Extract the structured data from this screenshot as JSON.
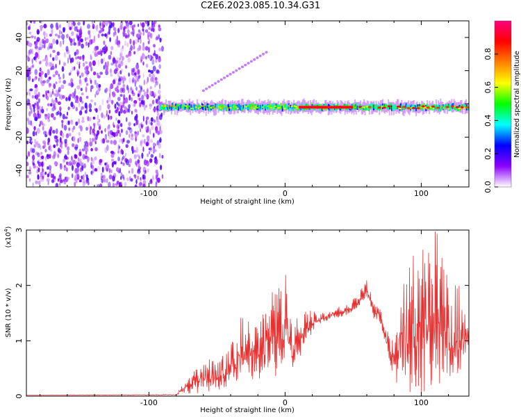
{
  "title": "C2E6.2023.085.10.34.G31",
  "chart_data": [
    {
      "type": "heatmap",
      "xlabel": "Height of straight line (km)",
      "ylabel": "Frequency (Hz)",
      "xlim": [
        -190,
        135
      ],
      "ylim": [
        -50,
        50
      ],
      "xticks": [
        -100,
        0,
        100
      ],
      "yticks": [
        -40,
        -20,
        0,
        20,
        40
      ],
      "noise_region_x": [
        -190,
        -90
      ],
      "signal_band_center_hz": -2,
      "strong_core_x": [
        10,
        50
      ],
      "colorbar": {
        "label": "Normalized spectral amplitude",
        "range": [
          0.0,
          1.0
        ],
        "ticks": [
          "0.0",
          "0.2",
          "0.4",
          "0.6",
          "0.8"
        ],
        "stops": [
          "#ffffff",
          "#8c00ff",
          "#0000ff",
          "#00ffff",
          "#00ff00",
          "#ffff00",
          "#ff8000",
          "#ff0000",
          "#ff0080"
        ]
      }
    },
    {
      "type": "line",
      "xlabel": "Height of straight line (km)",
      "ylabel": "SNR (10 * v/v)",
      "multiplier": "(x10",
      "multiplier_exp": "4",
      "multiplier_close": ")",
      "xlim": [
        -190,
        135
      ],
      "ylim": [
        0,
        3
      ],
      "xticks": [
        -100,
        0,
        100
      ],
      "yticks": [
        0,
        1,
        2,
        3
      ],
      "color": "#e83030",
      "envelope": [
        [
          -190,
          0.02,
          0.02
        ],
        [
          -80,
          0.02,
          0.03
        ],
        [
          -75,
          0.05,
          0.25
        ],
        [
          -65,
          0.05,
          0.6
        ],
        [
          -50,
          0.1,
          0.75
        ],
        [
          -40,
          0.2,
          0.9
        ],
        [
          -30,
          0.25,
          1.6
        ],
        [
          -20,
          0.3,
          1.2
        ],
        [
          -10,
          0.3,
          2.0
        ],
        [
          0,
          0.4,
          2.3
        ],
        [
          5,
          0.4,
          1.4
        ],
        [
          15,
          0.9,
          1.6
        ],
        [
          25,
          1.3,
          1.5
        ],
        [
          35,
          1.4,
          1.6
        ],
        [
          45,
          1.45,
          1.65
        ],
        [
          55,
          1.6,
          1.9
        ],
        [
          60,
          1.8,
          2.1
        ],
        [
          65,
          1.4,
          1.75
        ],
        [
          70,
          1.3,
          1.6
        ],
        [
          73,
          1.0,
          1.2
        ],
        [
          80,
          0.3,
          1.1
        ],
        [
          85,
          0.1,
          2.6
        ],
        [
          95,
          0.05,
          2.6
        ],
        [
          105,
          0.05,
          2.9
        ],
        [
          112,
          0.05,
          3.0
        ],
        [
          120,
          0.2,
          2.3
        ],
        [
          128,
          0.3,
          2.0
        ],
        [
          135,
          0.8,
          1.4
        ]
      ]
    }
  ]
}
